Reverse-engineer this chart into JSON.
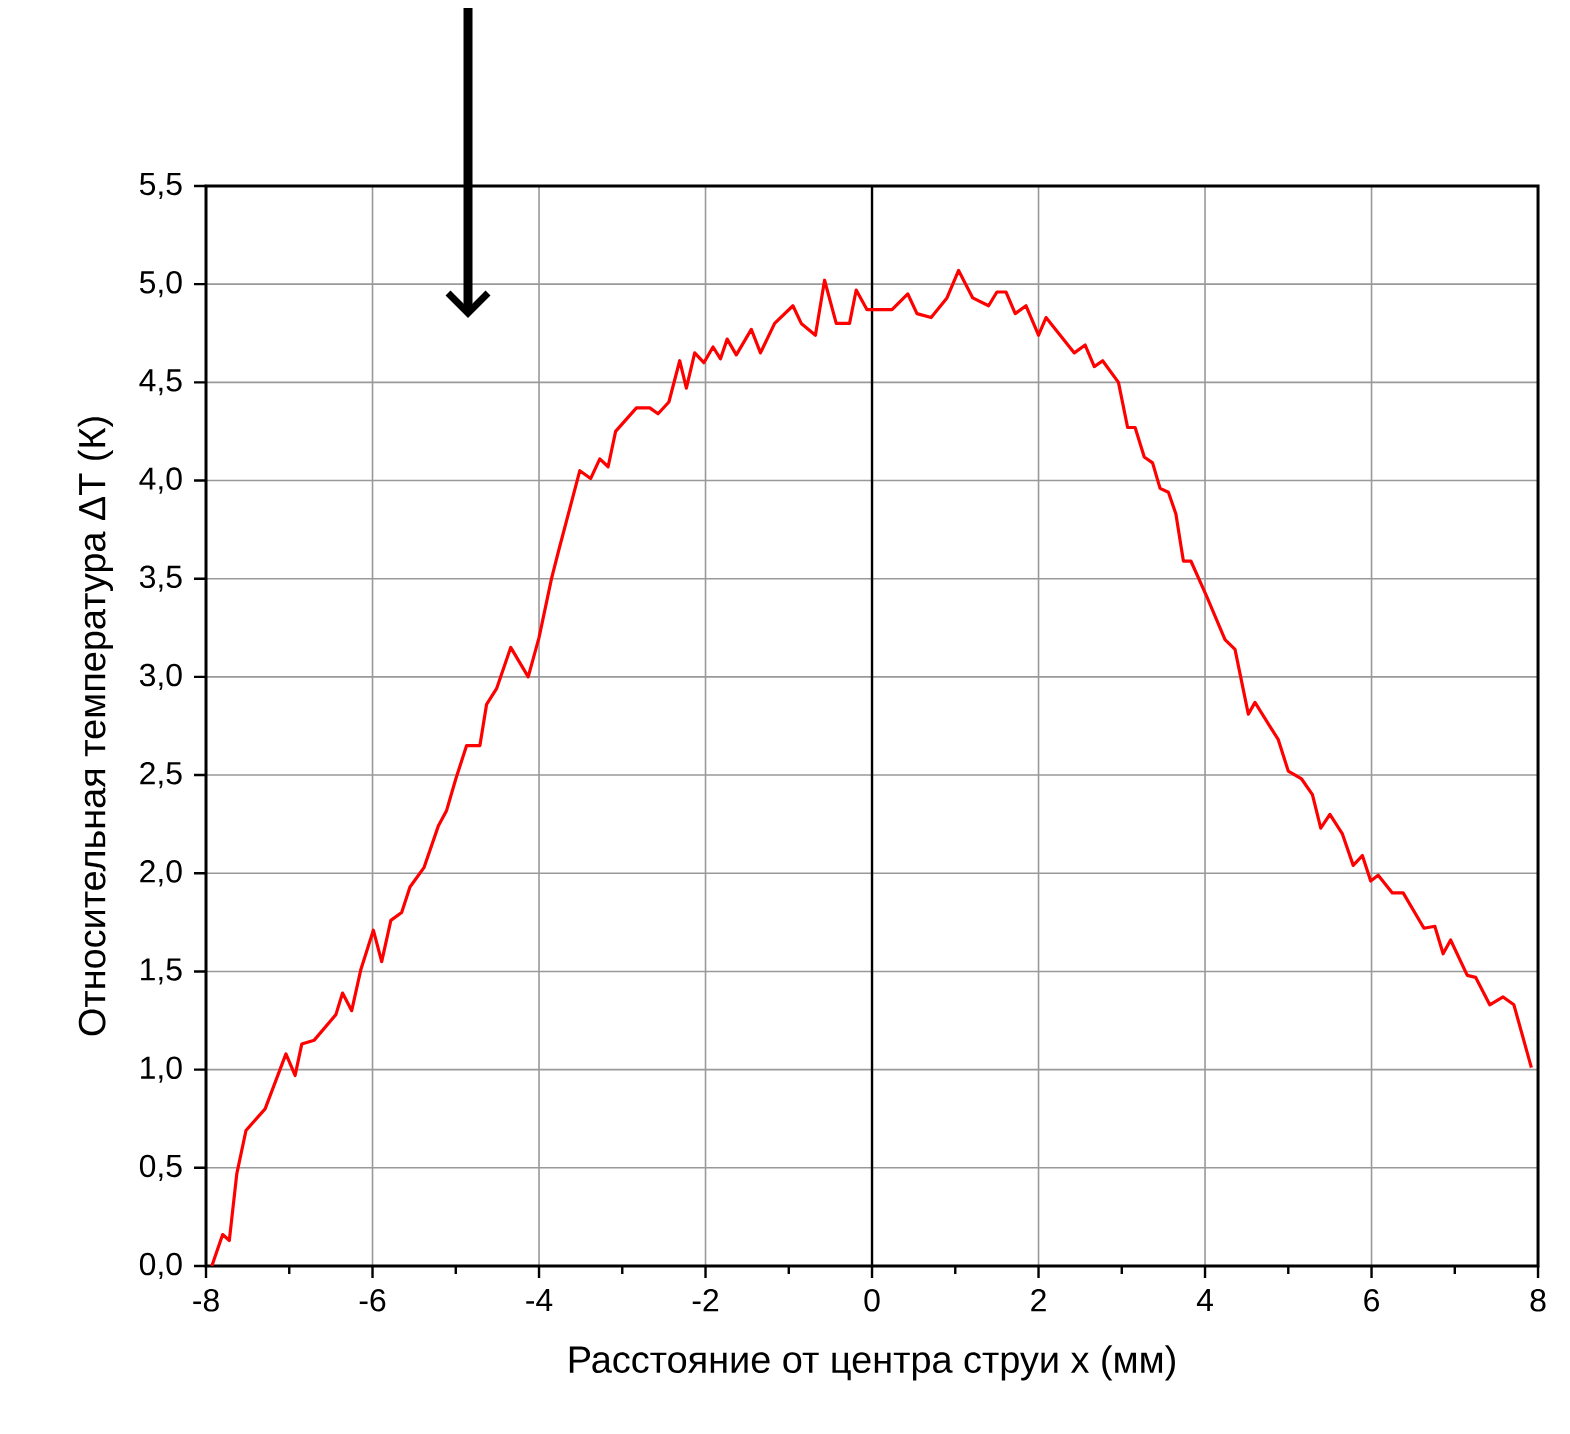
{
  "chart_data": {
    "type": "line",
    "xlabel": "Расстояние от центра струи x (мм)",
    "ylabel": "Относительная температура ΔT (К)",
    "x": [
      -7.93,
      -7.8,
      -7.72,
      -7.63,
      -7.52,
      -7.29,
      -7.04,
      -6.93,
      -6.85,
      -6.7,
      -6.44,
      -6.36,
      -6.25,
      -6.14,
      -5.99,
      -5.89,
      -5.78,
      -5.65,
      -5.55,
      -5.38,
      -5.21,
      -5.11,
      -5.0,
      -4.87,
      -4.71,
      -4.63,
      -4.51,
      -4.34,
      -4.13,
      -4.0,
      -3.85,
      -3.76,
      -3.51,
      -3.38,
      -3.27,
      -3.17,
      -3.08,
      -2.83,
      -2.67,
      -2.57,
      -2.44,
      -2.31,
      -2.23,
      -2.13,
      -2.02,
      -1.91,
      -1.82,
      -1.74,
      -1.63,
      -1.45,
      -1.34,
      -1.17,
      -0.95,
      -0.85,
      -0.68,
      -0.57,
      -0.43,
      -0.27,
      -0.19,
      -0.06,
      0.03,
      0.24,
      0.43,
      0.54,
      0.71,
      0.9,
      1.04,
      1.21,
      1.4,
      1.5,
      1.61,
      1.72,
      1.85,
      2.0,
      2.09,
      2.43,
      2.56,
      2.67,
      2.77,
      2.96,
      3.07,
      3.16,
      3.27,
      3.37,
      3.46,
      3.56,
      3.65,
      3.74,
      3.83,
      4.02,
      4.24,
      4.36,
      4.52,
      4.6,
      4.88,
      5.0,
      5.16,
      5.29,
      5.39,
      5.5,
      5.65,
      5.78,
      5.89,
      5.99,
      6.08,
      6.25,
      6.38,
      6.63,
      6.76,
      6.86,
      6.95,
      7.15,
      7.25,
      7.42,
      7.58,
      7.71,
      7.92
    ],
    "values": [
      0.0,
      0.16,
      0.13,
      0.47,
      0.69,
      0.8,
      1.08,
      0.97,
      1.13,
      1.15,
      1.28,
      1.39,
      1.3,
      1.51,
      1.71,
      1.55,
      1.76,
      1.8,
      1.93,
      2.03,
      2.24,
      2.32,
      2.48,
      2.65,
      2.65,
      2.86,
      2.94,
      3.15,
      3.0,
      3.2,
      3.5,
      3.65,
      4.05,
      4.01,
      4.11,
      4.07,
      4.25,
      4.37,
      4.37,
      4.34,
      4.4,
      4.61,
      4.47,
      4.65,
      4.6,
      4.68,
      4.62,
      4.72,
      4.64,
      4.77,
      4.65,
      4.8,
      4.89,
      4.8,
      4.74,
      5.02,
      4.8,
      4.8,
      4.97,
      4.87,
      4.87,
      4.87,
      4.95,
      4.85,
      4.83,
      4.93,
      5.07,
      4.93,
      4.89,
      4.96,
      4.96,
      4.85,
      4.89,
      4.74,
      4.83,
      4.65,
      4.69,
      4.58,
      4.61,
      4.5,
      4.27,
      4.27,
      4.12,
      4.09,
      3.96,
      3.94,
      3.83,
      3.59,
      3.59,
      3.41,
      3.19,
      3.14,
      2.81,
      2.87,
      2.68,
      2.52,
      2.48,
      2.4,
      2.23,
      2.3,
      2.2,
      2.04,
      2.09,
      1.96,
      1.99,
      1.9,
      1.9,
      1.72,
      1.73,
      1.59,
      1.66,
      1.48,
      1.47,
      1.33,
      1.37,
      1.33,
      1.01
    ],
    "color": "#ff0000",
    "xlim": [
      -8,
      8
    ],
    "ylim": [
      0,
      5.5
    ],
    "xticks": [
      -8,
      -6,
      -4,
      -2,
      0,
      2,
      4,
      6,
      8
    ],
    "yticks": [
      {
        "value": 0,
        "label": "0,0"
      },
      {
        "value": 0.5,
        "label": "0,5"
      },
      {
        "value": 1,
        "label": "1,0"
      },
      {
        "value": 1.5,
        "label": "1,5"
      },
      {
        "value": 2,
        "label": "2,0"
      },
      {
        "value": 2.5,
        "label": "2,5"
      },
      {
        "value": 3,
        "label": "3,0"
      },
      {
        "value": 3.5,
        "label": "3,5"
      },
      {
        "value": 4,
        "label": "4,0"
      },
      {
        "value": 4.5,
        "label": "4,5"
      },
      {
        "value": 5,
        "label": "5,0"
      },
      {
        "value": 5.5,
        "label": "5,5"
      }
    ],
    "grid": true,
    "ref_lines": [
      {
        "axis": "x",
        "value": 0,
        "color": "#000000"
      }
    ]
  }
}
